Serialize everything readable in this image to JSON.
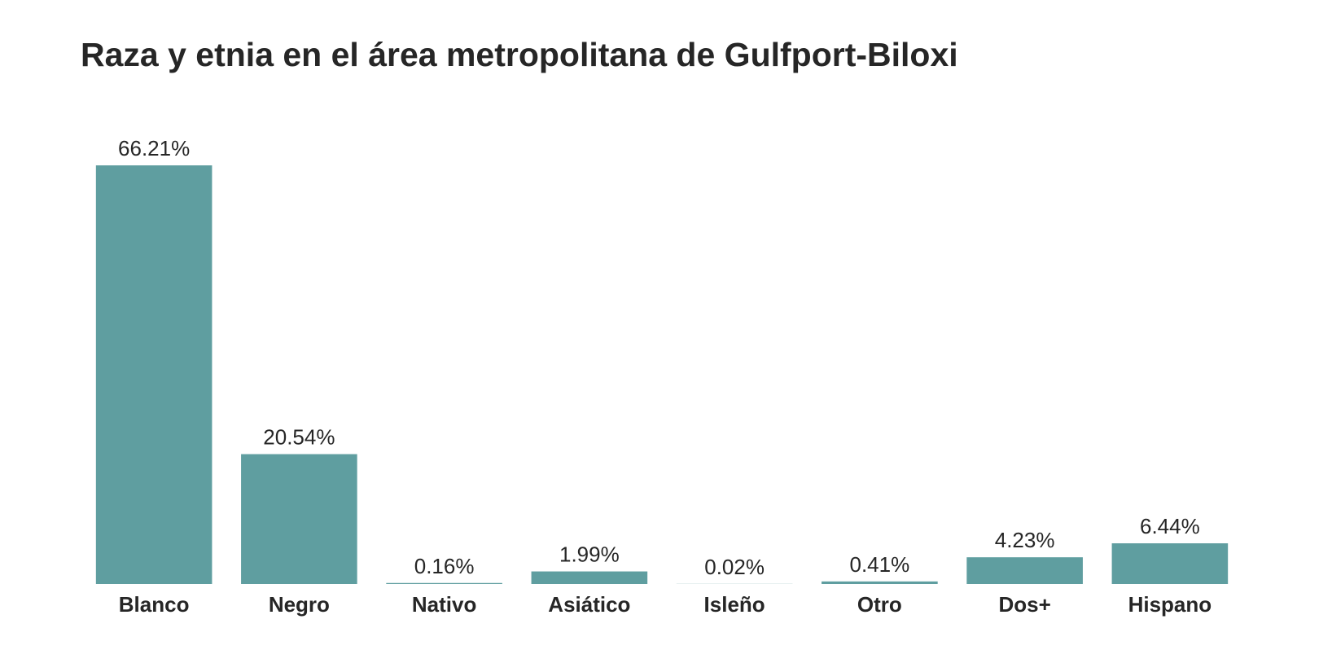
{
  "chart_data": {
    "type": "bar",
    "title": "Raza y etnia en el área metropolitana de Gulfport-Biloxi",
    "xlabel": "",
    "ylabel": "",
    "categories": [
      "Blanco",
      "Negro",
      "Nativo",
      "Asiático",
      "Isleño",
      "Otro",
      "Dos+",
      "Hispano"
    ],
    "values": [
      66.21,
      20.54,
      0.16,
      1.99,
      0.02,
      0.41,
      4.23,
      6.44
    ],
    "value_labels": [
      "66.21%",
      "20.54%",
      "0.16%",
      "1.99%",
      "0.02%",
      "0.41%",
      "4.23%",
      "6.44%"
    ],
    "ylim": [
      0,
      66.21
    ],
    "grid": false,
    "legend": "none",
    "bar_color": "#5f9ea0",
    "text_color": "#262626"
  }
}
